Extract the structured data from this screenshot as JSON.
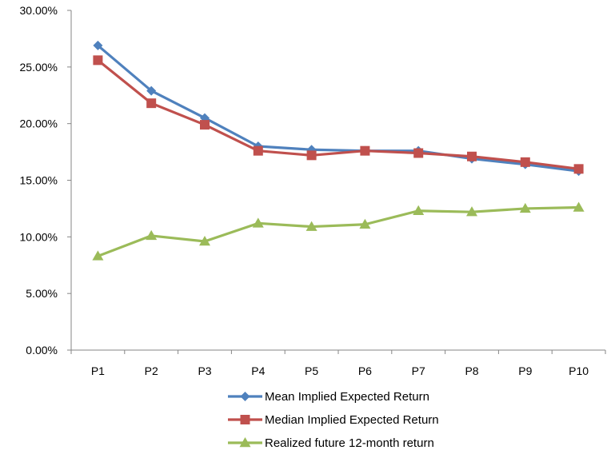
{
  "chart_data": {
    "type": "line",
    "categories": [
      "P1",
      "P2",
      "P3",
      "P4",
      "P5",
      "P6",
      "P7",
      "P8",
      "P9",
      "P10"
    ],
    "ylim": [
      0,
      30
    ],
    "yticks": [
      0,
      5,
      10,
      15,
      20,
      25,
      30
    ],
    "ytick_labels": [
      "0.00%",
      "5.00%",
      "10.00%",
      "15.00%",
      "20.00%",
      "25.00%",
      "30.00%"
    ],
    "grid": false,
    "legend_placement": "bottom",
    "series": [
      {
        "name": "Mean Implied Expected Return",
        "marker": "diamond",
        "color": "#4F81BD",
        "values": [
          26.9,
          22.9,
          20.5,
          18.0,
          17.7,
          17.6,
          17.6,
          16.9,
          16.4,
          15.8
        ]
      },
      {
        "name": "Median Implied Expected Return",
        "marker": "square",
        "color": "#C0504D",
        "values": [
          25.6,
          21.8,
          19.9,
          17.6,
          17.2,
          17.6,
          17.4,
          17.1,
          16.6,
          16.0
        ]
      },
      {
        "name": "Realized future 12-month return",
        "marker": "triangle",
        "color": "#9BBB59",
        "values": [
          8.3,
          10.1,
          9.6,
          11.2,
          10.9,
          11.1,
          12.3,
          12.2,
          12.5,
          12.6
        ]
      }
    ]
  }
}
